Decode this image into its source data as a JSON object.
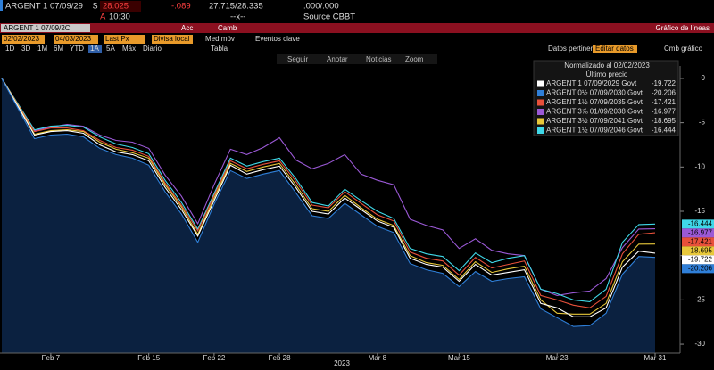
{
  "ui": {
    "ticker": "ARGENT 1 07/09/29",
    "currency": "$",
    "price": "28.025",
    "change": "-.089",
    "bid_ask": "27.715/28.335",
    "yield_pair": ".000/.000",
    "time_flag": "A",
    "time": "10:30",
    "size": "--x--",
    "source": "Source CBBT",
    "security_box": "ARGENT 1 07/09/2C",
    "actions": "Acc",
    "settings": "Camb",
    "view_title": "Gráfico de líneas",
    "start_date": "02/02/2023",
    "end_date": "04/03/2023",
    "field": "Last Px",
    "currency_mode": "Divisa local",
    "moving_avg": "Med móv",
    "key_events": "Eventos clave",
    "periods": [
      "1D",
      "3D",
      "1M",
      "6M",
      "YTD",
      "1A",
      "5A",
      "Máx",
      "Diario"
    ],
    "table": "Tabla",
    "related_data": "Datos pertinent",
    "edit_data": "Editar datos",
    "change_chart": "Cmb gráfico",
    "tools": [
      "Seguir",
      "Anotar",
      "Noticias",
      "Zoom"
    ]
  },
  "chart_data": {
    "type": "line",
    "legend_title": "Normalizado al 02/02/2023",
    "legend_subtitle": "Último precio",
    "x_group_label": "2023",
    "categories": [
      null,
      null,
      null,
      "Feb 7",
      null,
      null,
      null,
      null,
      null,
      "Feb 15",
      null,
      null,
      null,
      "Feb 22",
      null,
      null,
      null,
      "Feb 28",
      null,
      null,
      null,
      null,
      null,
      "Mar 8",
      null,
      null,
      null,
      null,
      "Mar 15",
      null,
      null,
      null,
      null,
      null,
      "Mar 23",
      null,
      null,
      null,
      null,
      null,
      "Mar 31"
    ],
    "ylim": [
      -31,
      1
    ],
    "yticks": [
      0,
      -5,
      -10,
      -15,
      -20,
      -25,
      -30
    ],
    "grid": false,
    "area_color": "#0b2140",
    "series": [
      {
        "name": "ARGENT 1 07/09/2029 Govt",
        "color": "#ffffff",
        "values": [
          0,
          -3.2,
          -6.4,
          -6.0,
          -5.9,
          -6.2,
          -7.5,
          -8.3,
          -8.6,
          -9.3,
          -12.3,
          -14.8,
          -17.8,
          -13.8,
          -9.8,
          -10.8,
          -10.3,
          -9.9,
          -12.3,
          -15.0,
          -15.3,
          -13.5,
          -14.8,
          -16.1,
          -16.8,
          -20.3,
          -21.0,
          -21.3,
          -22.9,
          -21.0,
          -22.2,
          -21.9,
          -21.6,
          -25.4,
          -25.9,
          -26.9,
          -26.9,
          -25.9,
          -21.3,
          -19.5,
          -19.722
        ]
      },
      {
        "name": "ARGENT 0½ 07/09/2030 Govt",
        "color": "#2f7fd8",
        "values": [
          0,
          -3.4,
          -6.8,
          -6.4,
          -6.3,
          -6.6,
          -7.9,
          -8.6,
          -9.0,
          -9.8,
          -12.8,
          -15.3,
          -18.5,
          -14.2,
          -10.4,
          -11.3,
          -10.8,
          -10.4,
          -12.9,
          -15.5,
          -15.8,
          -14.1,
          -15.4,
          -16.7,
          -17.4,
          -20.9,
          -21.6,
          -22.0,
          -23.5,
          -21.8,
          -22.9,
          -22.6,
          -22.4,
          -26.0,
          -27.0,
          -28.0,
          -27.9,
          -26.5,
          -22.1,
          -20.1,
          -20.206
        ]
      },
      {
        "name": "ARGENT 1½ 07/09/2035 Govt",
        "color": "#e8503a",
        "values": [
          0,
          -3.0,
          -6.0,
          -5.6,
          -5.6,
          -5.9,
          -7.0,
          -7.8,
          -8.1,
          -8.8,
          -11.8,
          -14.3,
          -17.2,
          -13.2,
          -9.3,
          -10.2,
          -9.7,
          -9.3,
          -11.6,
          -14.3,
          -14.6,
          -12.8,
          -14.1,
          -15.4,
          -16.1,
          -19.6,
          -20.3,
          -20.6,
          -22.2,
          -20.2,
          -21.4,
          -21.0,
          -20.6,
          -24.5,
          -25.0,
          -25.6,
          -25.9,
          -24.6,
          -19.8,
          -17.6,
          -17.421
        ]
      },
      {
        "name": "ARGENT 3⅞ 01/09/2038 Govt",
        "color": "#9b59d6",
        "values": [
          0,
          -3.0,
          -5.9,
          -5.5,
          -5.2,
          -5.4,
          -6.4,
          -7.0,
          -7.2,
          -7.9,
          -10.9,
          -13.3,
          -16.4,
          -12.0,
          -8.0,
          -8.6,
          -7.8,
          -6.7,
          -9.2,
          -10.2,
          -9.6,
          -8.6,
          -10.8,
          -11.5,
          -12.0,
          -15.9,
          -16.6,
          -17.1,
          -19.2,
          -18.1,
          -19.4,
          -19.8,
          -20.0,
          -23.8,
          -24.5,
          -24.2,
          -24.0,
          -22.6,
          -19.1,
          -17.0,
          -16.977
        ]
      },
      {
        "name": "ARGENT 3½ 07/09/2041 Govt",
        "color": "#e8c83a",
        "values": [
          0,
          -3.1,
          -6.3,
          -5.9,
          -5.8,
          -6.0,
          -7.2,
          -8.0,
          -8.4,
          -9.0,
          -12.0,
          -14.5,
          -17.6,
          -13.5,
          -9.6,
          -10.5,
          -10.0,
          -9.6,
          -12.0,
          -14.7,
          -15.0,
          -13.2,
          -14.6,
          -15.9,
          -16.6,
          -20.0,
          -20.8,
          -21.1,
          -22.7,
          -20.7,
          -21.9,
          -21.5,
          -21.2,
          -25.0,
          -26.5,
          -26.6,
          -26.6,
          -25.4,
          -20.7,
          -18.7,
          -18.695
        ]
      },
      {
        "name": "ARGENT 1½ 07/09/2046 Govt",
        "color": "#3fd8e8",
        "values": [
          0,
          -2.9,
          -5.8,
          -5.4,
          -5.3,
          -5.5,
          -6.6,
          -7.4,
          -7.8,
          -8.5,
          -11.5,
          -14.0,
          -17.0,
          -13.0,
          -9.0,
          -9.9,
          -9.4,
          -9.0,
          -11.3,
          -14.0,
          -14.4,
          -12.5,
          -13.8,
          -15.0,
          -15.8,
          -19.2,
          -19.8,
          -20.1,
          -21.7,
          -19.7,
          -20.8,
          -20.3,
          -20.0,
          -23.8,
          -24.3,
          -25.0,
          -25.2,
          -23.8,
          -18.5,
          -16.5,
          -16.444
        ]
      }
    ]
  }
}
